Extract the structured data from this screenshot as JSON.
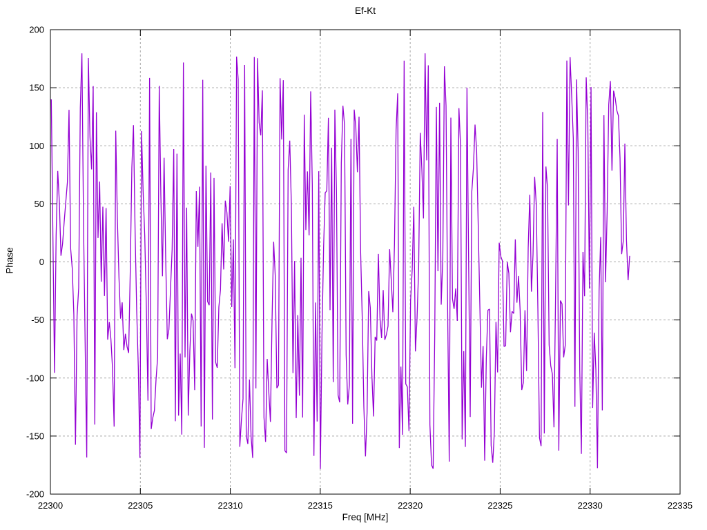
{
  "figure": {
    "background": "#ffffff",
    "text_color": "#000000"
  },
  "chart_data": {
    "type": "line",
    "title": "Ef-Kt",
    "xlabel": "Freq [MHz]",
    "ylabel": "Phase",
    "xlim": [
      22300,
      22335
    ],
    "ylim": [
      -200,
      200
    ],
    "x_ticks": [
      22300,
      22305,
      22310,
      22315,
      22320,
      22325,
      22330,
      22335
    ],
    "y_ticks": [
      -200,
      -150,
      -100,
      -50,
      0,
      50,
      100,
      150,
      200
    ],
    "grid": true,
    "grid_color": "#a8a8a8",
    "grid_dash": "3,3",
    "border_color": "#000000",
    "tick_color": "#000000",
    "tick_length": 9,
    "legend": "none",
    "series": [
      {
        "name": "Ef-Kt",
        "color": "#9400D3",
        "line_width": 1.3,
        "model": "wrapped-random-walk",
        "x_start": 22300.05,
        "x_end": 22332.2,
        "points": 360,
        "wrap_deg": 180,
        "seed": 1337,
        "start_deg": 140,
        "step_max_deg": 195,
        "envelope_period": 80,
        "envelope_min": 0.5,
        "envelope_phase": 1.0
      }
    ]
  }
}
